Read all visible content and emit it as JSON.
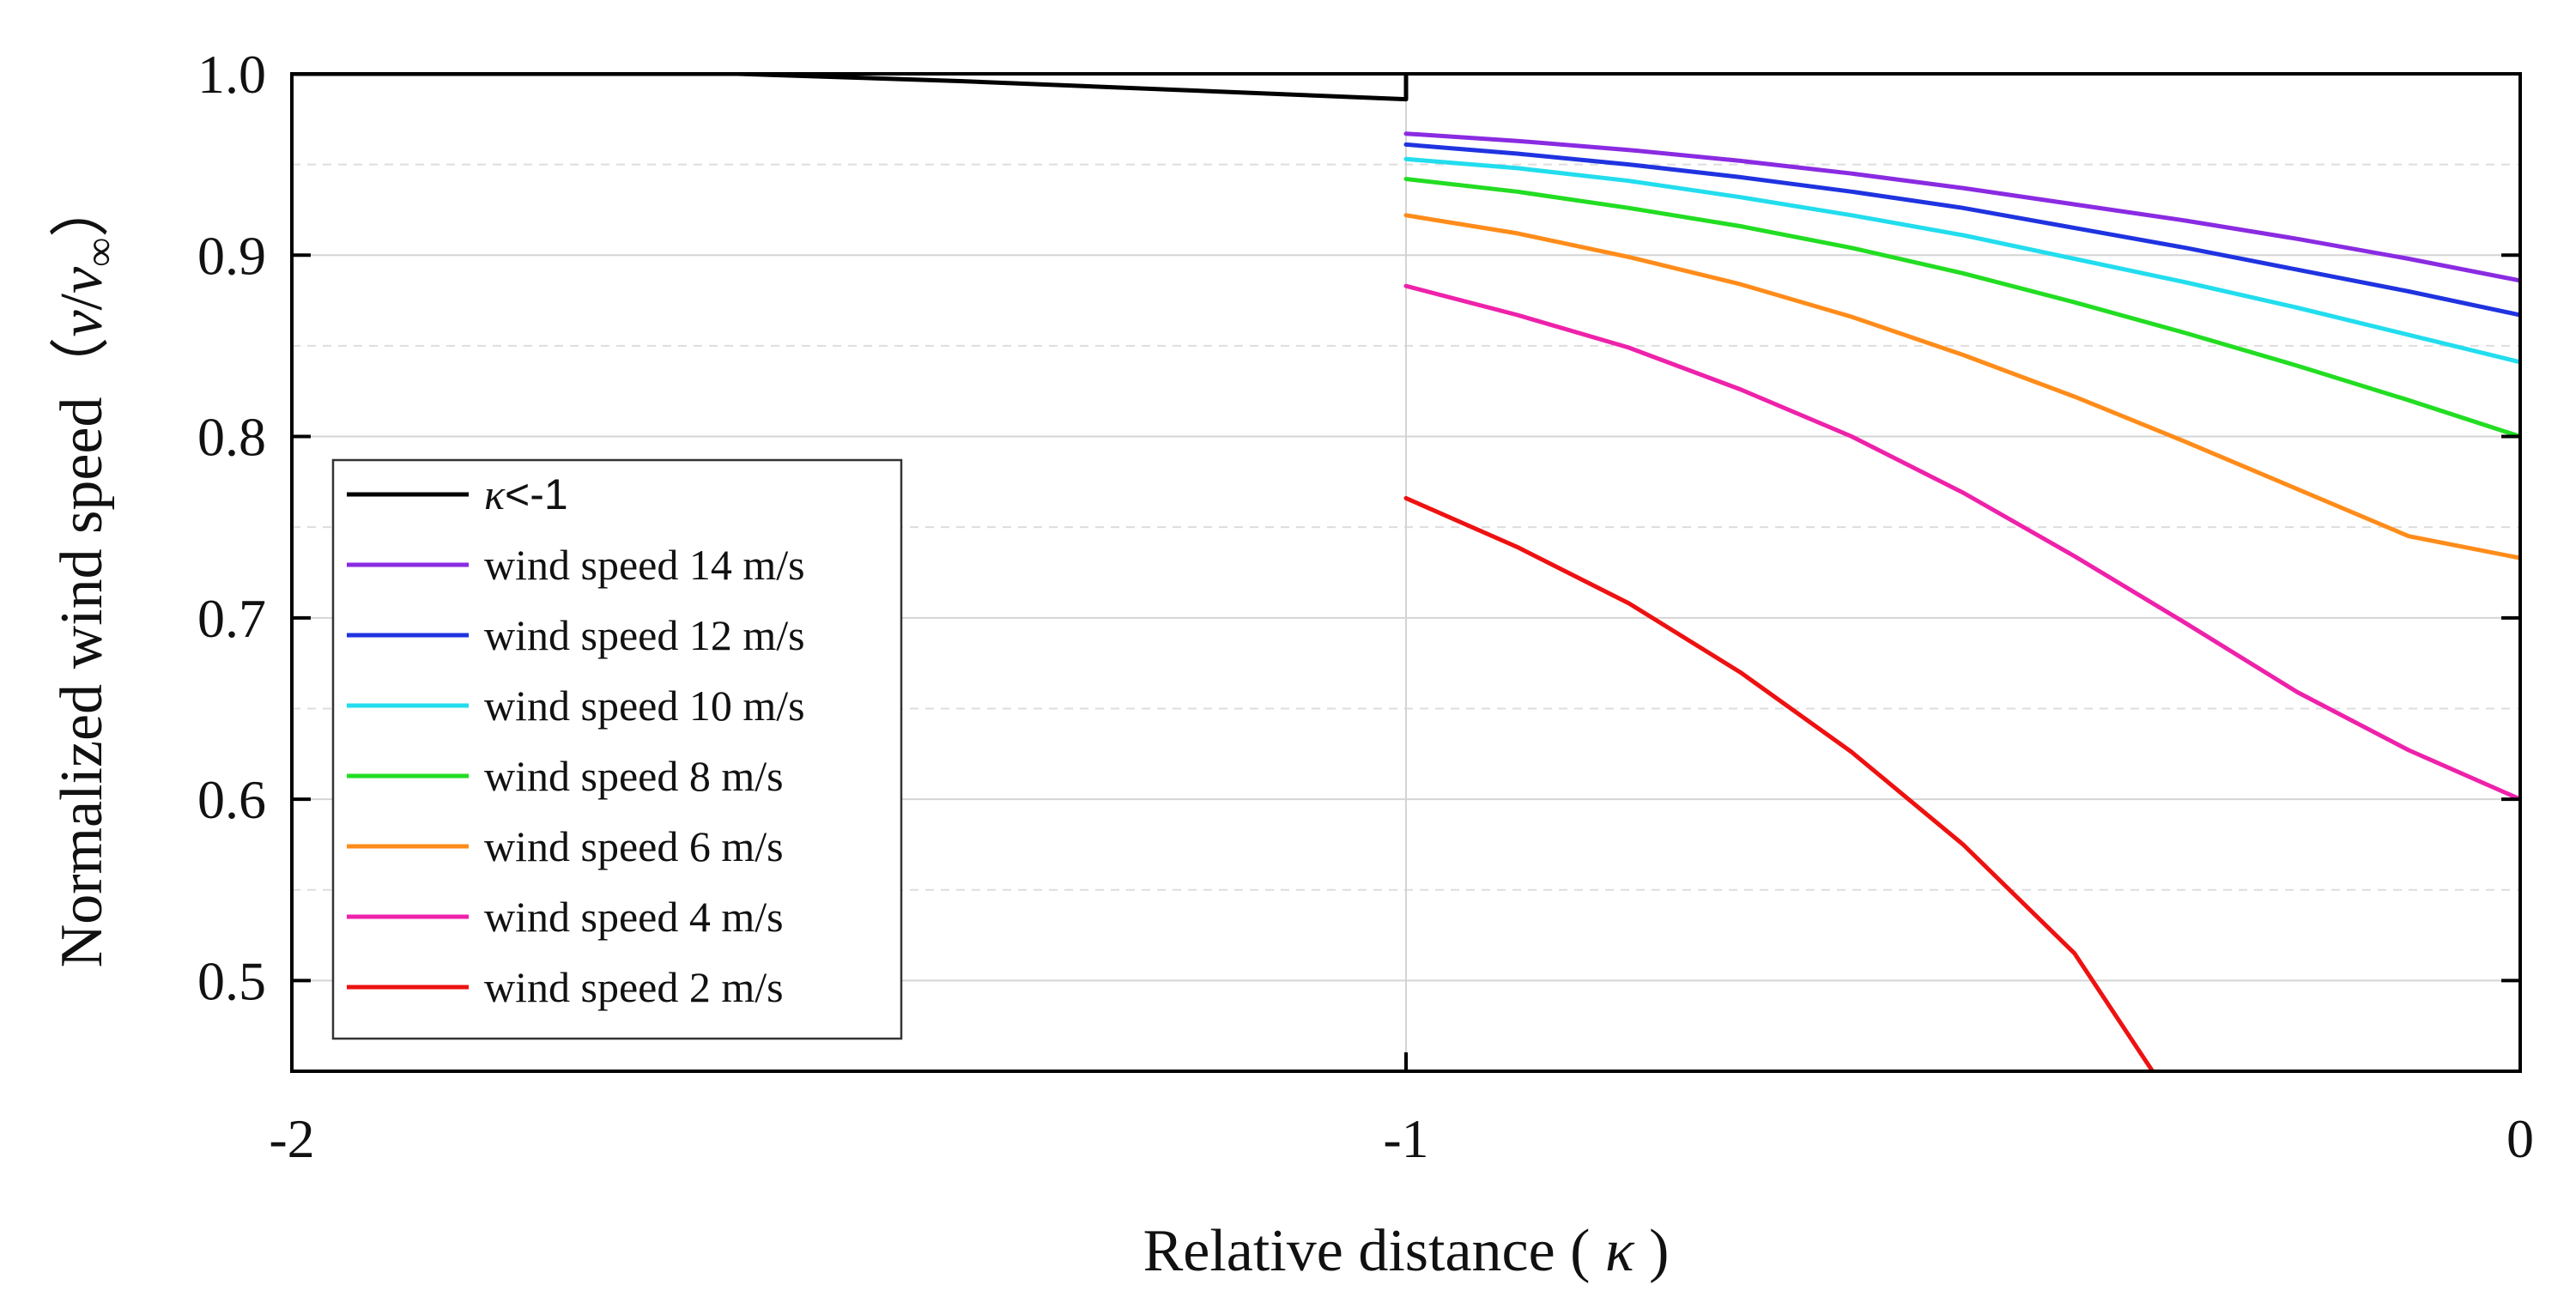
{
  "chart_data": {
    "type": "line",
    "xlabel_text": "Relative distance ( ",
    "xlabel_symbol": "κ",
    "xlabel_close": " )",
    "ylabel_text": "Normalized wind speed（",
    "ylabel_v1": "v",
    "ylabel_slash": "/",
    "ylabel_v2": "v",
    "ylabel_sub": "∞",
    "ylabel_close": "）",
    "xlim": [
      -2,
      0
    ],
    "ylim": [
      0.45,
      1.0
    ],
    "x_ticks": [
      -2,
      -1,
      0
    ],
    "x_tick_labels": [
      "-2",
      "-1",
      "0"
    ],
    "y_ticks": [
      0.5,
      0.6,
      0.7,
      0.8,
      0.9,
      1.0
    ],
    "y_tick_labels": [
      "0.5",
      "0.6",
      "0.7",
      "0.8",
      "0.9",
      "1.0"
    ],
    "y_minor_ticks": [
      0.55,
      0.65,
      0.75,
      0.85,
      0.95
    ],
    "x_vertical_grid": [
      -1
    ],
    "grid": true,
    "legend_position": "left",
    "series": [
      {
        "key": "k-lt-neg1",
        "legend_symbol": "κ",
        "legend_text": "<-1",
        "color": "#000000",
        "points": [
          [
            -2.0,
            1.0
          ],
          [
            -1.6,
            1.0
          ],
          [
            -1.4,
            0.996
          ],
          [
            -1.2,
            0.991
          ],
          [
            -1.0,
            0.986
          ],
          [
            -1.0,
            1.0
          ]
        ]
      },
      {
        "key": "ws-14",
        "name": "wind speed 14 m/s",
        "color": "#8a2be2",
        "points": [
          [
            -1.0,
            0.967
          ],
          [
            -0.9,
            0.963
          ],
          [
            -0.8,
            0.958
          ],
          [
            -0.7,
            0.952
          ],
          [
            -0.6,
            0.945
          ],
          [
            -0.5,
            0.937
          ],
          [
            -0.4,
            0.928
          ],
          [
            -0.3,
            0.919
          ],
          [
            -0.2,
            0.909
          ],
          [
            -0.1,
            0.898
          ],
          [
            0.0,
            0.886
          ]
        ]
      },
      {
        "key": "ws-12",
        "name": "wind speed 12 m/s",
        "color": "#1f33e0",
        "points": [
          [
            -1.0,
            0.961
          ],
          [
            -0.9,
            0.956
          ],
          [
            -0.8,
            0.95
          ],
          [
            -0.7,
            0.943
          ],
          [
            -0.6,
            0.935
          ],
          [
            -0.5,
            0.926
          ],
          [
            -0.4,
            0.915
          ],
          [
            -0.3,
            0.904
          ],
          [
            -0.2,
            0.892
          ],
          [
            -0.1,
            0.88
          ],
          [
            0.0,
            0.867
          ]
        ]
      },
      {
        "key": "ws-10",
        "name": "wind speed 10 m/s",
        "color": "#22ddee",
        "points": [
          [
            -1.0,
            0.953
          ],
          [
            -0.9,
            0.948
          ],
          [
            -0.8,
            0.941
          ],
          [
            -0.7,
            0.932
          ],
          [
            -0.6,
            0.922
          ],
          [
            -0.5,
            0.911
          ],
          [
            -0.4,
            0.898
          ],
          [
            -0.3,
            0.885
          ],
          [
            -0.2,
            0.871
          ],
          [
            -0.1,
            0.856
          ],
          [
            0.0,
            0.841
          ]
        ]
      },
      {
        "key": "ws-8",
        "name": "wind speed 8 m/s",
        "color": "#22dd22",
        "points": [
          [
            -1.0,
            0.942
          ],
          [
            -0.9,
            0.935
          ],
          [
            -0.8,
            0.926
          ],
          [
            -0.7,
            0.916
          ],
          [
            -0.6,
            0.904
          ],
          [
            -0.5,
            0.89
          ],
          [
            -0.4,
            0.874
          ],
          [
            -0.3,
            0.857
          ],
          [
            -0.2,
            0.839
          ],
          [
            -0.1,
            0.82
          ],
          [
            0.0,
            0.8
          ]
        ]
      },
      {
        "key": "ws-6",
        "name": "wind speed 6 m/s",
        "color": "#ff8c1a",
        "points": [
          [
            -1.0,
            0.922
          ],
          [
            -0.9,
            0.912
          ],
          [
            -0.8,
            0.899
          ],
          [
            -0.7,
            0.884
          ],
          [
            -0.6,
            0.866
          ],
          [
            -0.5,
            0.845
          ],
          [
            -0.4,
            0.822
          ],
          [
            -0.3,
            0.797
          ],
          [
            -0.2,
            0.771
          ],
          [
            -0.1,
            0.745
          ],
          [
            0.0,
            0.733
          ]
        ]
      },
      {
        "key": "ws-4",
        "name": "wind speed 4 m/s",
        "color": "#ee22aa",
        "points": [
          [
            -1.0,
            0.883
          ],
          [
            -0.9,
            0.867
          ],
          [
            -0.8,
            0.849
          ],
          [
            -0.7,
            0.826
          ],
          [
            -0.6,
            0.8
          ],
          [
            -0.5,
            0.769
          ],
          [
            -0.4,
            0.734
          ],
          [
            -0.3,
            0.697
          ],
          [
            -0.2,
            0.659
          ],
          [
            -0.1,
            0.627
          ],
          [
            0.0,
            0.6
          ]
        ]
      },
      {
        "key": "ws-2",
        "name": "wind speed 2 m/s",
        "color": "#ee1111",
        "points": [
          [
            -1.0,
            0.766
          ],
          [
            -0.9,
            0.739
          ],
          [
            -0.8,
            0.708
          ],
          [
            -0.7,
            0.67
          ],
          [
            -0.6,
            0.626
          ],
          [
            -0.5,
            0.575
          ],
          [
            -0.4,
            0.515
          ],
          [
            -0.33,
            0.45
          ]
        ]
      }
    ]
  }
}
